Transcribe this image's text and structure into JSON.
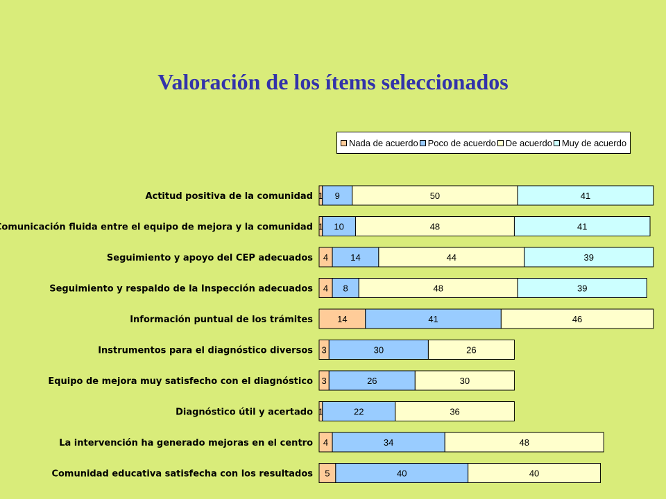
{
  "chart_data": {
    "type": "bar",
    "orientation": "horizontal",
    "stacked": true,
    "percent": true,
    "title": "Valoración de los ítems seleccionados",
    "legend_position": "top-right",
    "categories": [
      "Actitud positiva de la comunidad",
      "Comunicación fluida entre el equipo de mejora y la comunidad",
      "Seguimiento y apoyo del CEP adecuados",
      "Seguimiento y respaldo de la Inspección adecuados",
      "Información puntual de los trámites",
      "Instrumentos para el diagnóstico diversos",
      "Equipo de mejora muy satisfecho con el diagnóstico",
      "Diagnóstico útil y acertado",
      "La intervención ha generado mejoras en el centro",
      "Comunidad educativa satisfecha con los resultados"
    ],
    "series": [
      {
        "name": "Nada de acuerdo",
        "color": "#ffcc99",
        "values": [
          1,
          1,
          4,
          4,
          14,
          3,
          3,
          1,
          4,
          5
        ]
      },
      {
        "name": "Poco de acuerdo",
        "color": "#99ccff",
        "values": [
          9,
          10,
          14,
          8,
          41,
          30,
          26,
          22,
          34,
          40
        ]
      },
      {
        "name": "De acuerdo",
        "color": "#ffffcc",
        "values": [
          50,
          48,
          44,
          48,
          46,
          26,
          30,
          36,
          48,
          40
        ]
      },
      {
        "name": "Muy de acuerdo",
        "color": "#ccffff",
        "values": [
          41,
          41,
          39,
          39,
          0,
          0,
          0,
          0,
          0,
          0
        ]
      }
    ]
  }
}
